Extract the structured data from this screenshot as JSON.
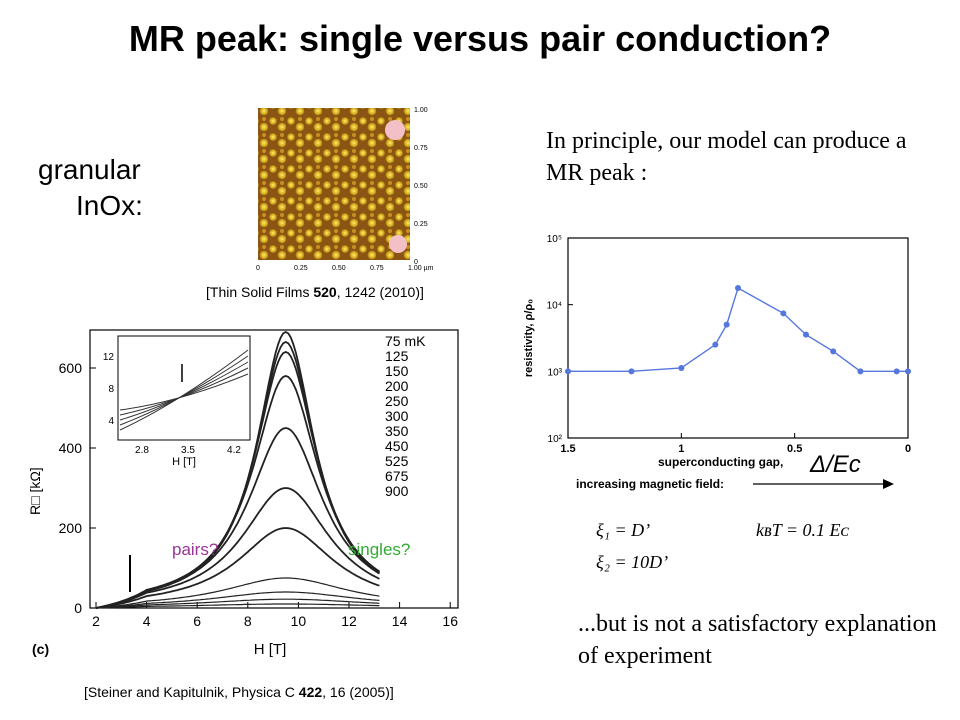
{
  "title": "MR peak: single versus pair conduction?",
  "granular_line1": "granular",
  "granular_line2": "InOx:",
  "afm": {
    "y_ticks": [
      "1.00",
      "0.75",
      "0.50",
      "0.25",
      "0"
    ],
    "x_ticks": [
      "0",
      "0.25",
      "0.50",
      "0.75",
      "1.00 µm"
    ],
    "citation": {
      "pre": "[Thin Solid Films ",
      "bold": "520",
      "post": ", 1242 (2010)]"
    }
  },
  "main_plot": {
    "y_ticks": [
      "600",
      "400",
      "200",
      "0"
    ],
    "x_ticks": [
      "2",
      "4",
      "6",
      "8",
      "10",
      "12",
      "14",
      "16"
    ],
    "ylabel": "R□ [kΩ]",
    "xlabel": "H  [T]",
    "panel": "(c)",
    "legend": [
      "75 mK",
      "125",
      "150",
      "200",
      "250",
      "300",
      "350",
      "450",
      "525",
      "675",
      "900"
    ],
    "pairs_label": "pairs?",
    "singles_label": "singles?",
    "inset": {
      "y_ticks": [
        "12",
        "8",
        "4"
      ],
      "x_ticks": [
        "2.8",
        "3.5",
        "4.2"
      ],
      "xlabel": "H  [T]"
    },
    "citation": {
      "pre": "[Steiner and Kapitulnik, Physica C ",
      "bold": "422",
      "post": ", 16 (2005)]"
    }
  },
  "intro_text": "In principle, our model can produce a MR peak :",
  "model_plot": {
    "y_ticks": [
      "10⁵",
      "10⁴",
      "10³",
      "10²"
    ],
    "x_ticks": [
      "1.5",
      "1",
      "0.5",
      "0"
    ],
    "ylabel": "resistivity, ρ/ρ₀",
    "xlabel": "superconducting gap,",
    "arrow_label": "increasing magnetic field:",
    "gap_symbol": "Δ/Eᴄ"
  },
  "chart_data": {
    "type": "line",
    "x": [
      1.5,
      1.22,
      1.0,
      0.85,
      0.8,
      0.75,
      0.55,
      0.45,
      0.33,
      0.21,
      0.05,
      0.0
    ],
    "y_log10": [
      3.0,
      3.0,
      3.05,
      3.4,
      3.7,
      4.25,
      3.87,
      3.55,
      3.3,
      3.0,
      3.0,
      3.0
    ],
    "xlim": [
      1.5,
      0
    ],
    "ylim_log10": [
      2,
      5
    ],
    "yscale": "log",
    "color": "#5577dd"
  },
  "params": {
    "xi1": "ξ₁ = D’",
    "kbt": "kʙT = 0.1 Eᴄ",
    "xi2": "ξ₂ = 10D’"
  },
  "outro_text": "...but is not a satisfactory explanation of experiment"
}
